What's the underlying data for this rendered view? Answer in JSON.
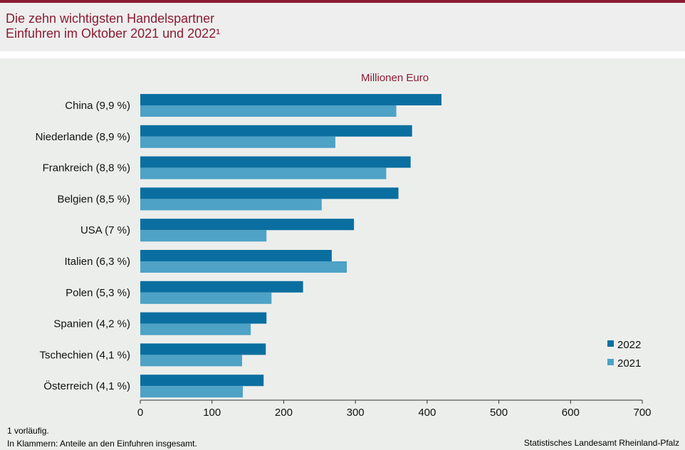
{
  "header": {
    "title_line1": "Die zehn wichtigsten Handelspartner",
    "title_line2": "Einfuhren im Oktober 2021 und 2022¹"
  },
  "colors": {
    "accent": "#8a1c32",
    "series_2022": "#0a6fa0",
    "series_2021": "#4ea2c6"
  },
  "chart_data": {
    "type": "bar",
    "orientation": "horizontal",
    "unit": "Millionen Euro",
    "categories": [
      "China (9,9 %)",
      "Niederlande (8,9 %)",
      "Frankreich (8,8 %)",
      "Belgien (8,5 %)",
      "USA (7 %)",
      "Italien (6,3 %)",
      "Polen (5,3 %)",
      "Spanien (4,2 %)",
      "Tschechien (4,1 %)",
      "Österreich (4,1 %)"
    ],
    "series": [
      {
        "name": "2022",
        "values": [
          420,
          379,
          377,
          360,
          298,
          267,
          227,
          176,
          175,
          172
        ]
      },
      {
        "name": "2021",
        "values": [
          357,
          272,
          343,
          253,
          176,
          288,
          183,
          154,
          142,
          143
        ]
      }
    ],
    "xlim": [
      0,
      700
    ],
    "xticks": [
      "0",
      "100",
      "200",
      "300",
      "400",
      "500",
      "600",
      "700"
    ],
    "legend_position": "bottom-right",
    "grid": false
  },
  "footer": {
    "note1": "1 vorläufig.",
    "note2": "In Klammern: Anteile an den Einfuhren insgesamt.",
    "source": "Statistisches Landesamt Rheinland-Pfalz"
  }
}
